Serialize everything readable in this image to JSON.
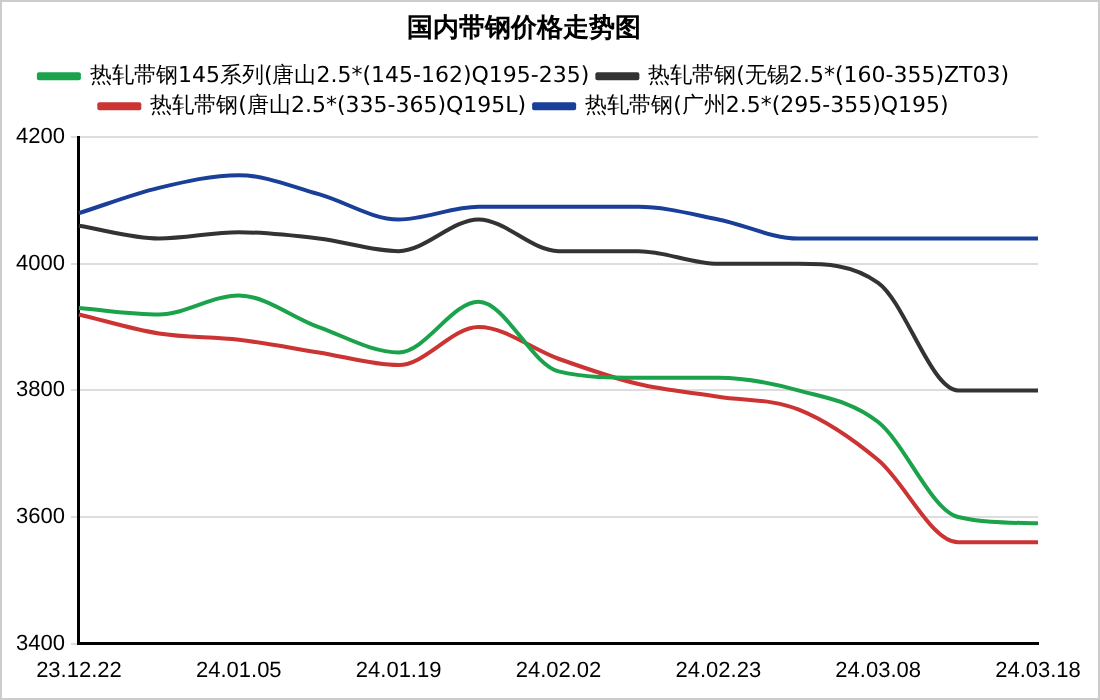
{
  "chart_data": {
    "type": "line",
    "title": "国内带钢价格走势图",
    "categories": [
      "23.12.22",
      null,
      "24.01.05",
      null,
      "24.01.19",
      null,
      "24.02.02",
      null,
      "24.02.23",
      null,
      "24.03.08",
      null,
      "24.03.18"
    ],
    "series": [
      {
        "name": "热轧带钢145系列(唐山2.5*(145-162)Q195-235)",
        "color": "#1aa34a",
        "values": [
          3930,
          3920,
          3950,
          3900,
          3860,
          3940,
          3830,
          3820,
          3820,
          3800,
          3750,
          3600,
          3590
        ]
      },
      {
        "name": "热轧带钢(无锡2.5*(160-355)ZT03)",
        "color": "#333333",
        "values": [
          4060,
          4040,
          4050,
          4040,
          4020,
          4070,
          4020,
          4020,
          4000,
          4000,
          3970,
          3800,
          3800
        ]
      },
      {
        "name": "热轧带钢(唐山2.5*(335-365)Q195L)",
        "color": "#cc3333",
        "values": [
          3920,
          3890,
          3880,
          3860,
          3840,
          3900,
          3850,
          3810,
          3790,
          3770,
          3690,
          3560,
          3560
        ]
      },
      {
        "name": "热轧带钢(广州2.5*(295-355)Q195)",
        "color": "#1a3f99",
        "values": [
          4080,
          4120,
          4140,
          4110,
          4070,
          4090,
          4090,
          4090,
          4070,
          4040,
          4040,
          4040,
          4040
        ]
      }
    ],
    "ylim": [
      3400,
      4200
    ],
    "yticks": [
      3400,
      3600,
      3800,
      4000,
      4200
    ],
    "grid": "y",
    "legend": "top",
    "marker": "none",
    "line_style": "solid"
  }
}
